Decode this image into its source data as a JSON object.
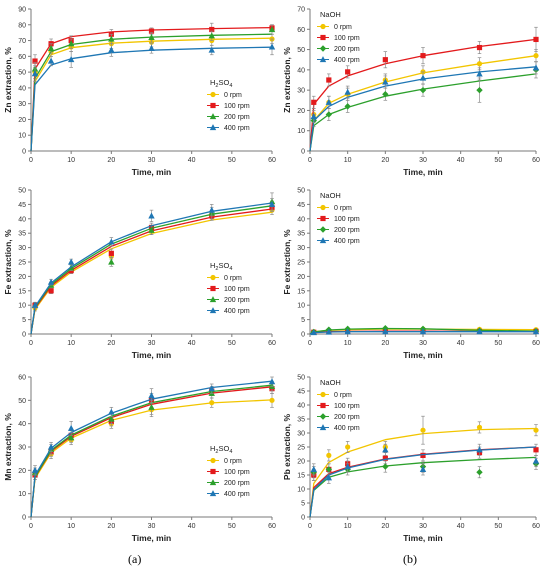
{
  "figure": {
    "label_a": "(a)",
    "label_b": "(b)"
  },
  "chart_data": [
    {
      "id": "zn_h2so4",
      "type": "line",
      "xlabel": "Time, min",
      "ylabel": "Zn extraction, %",
      "xlim": [
        0,
        60
      ],
      "ylim": [
        0,
        90
      ],
      "xticks": [
        0,
        10,
        20,
        30,
        40,
        50,
        60
      ],
      "yticks": [
        0,
        10,
        20,
        30,
        40,
        50,
        60,
        70,
        80,
        90
      ],
      "legend_title": "H2SO4",
      "legend_position": "bottom-right",
      "x": [
        0,
        1,
        5,
        10,
        20,
        30,
        45,
        60
      ],
      "series": [
        {
          "name": "0 rpm",
          "color": "#f2c500",
          "marker": "circle",
          "values": [
            0,
            50,
            63,
            66,
            68,
            69,
            70,
            71
          ],
          "errors": [
            0,
            4,
            3,
            3,
            3,
            3,
            3,
            3
          ],
          "fit": [
            0,
            44,
            61,
            65.5,
            68.3,
            69.6,
            70.8,
            71.5
          ]
        },
        {
          "name": "100 rpm",
          "color": "#e31a1c",
          "marker": "square",
          "values": [
            0,
            57,
            68,
            70,
            74,
            76,
            77,
            78
          ],
          "errors": [
            0,
            4,
            3,
            3,
            3,
            2,
            4,
            2
          ],
          "fit": [
            0,
            52,
            68,
            72.5,
            75.5,
            76.7,
            77.6,
            78.2
          ]
        },
        {
          "name": "200 rpm",
          "color": "#2ca02c",
          "marker": "triangle",
          "values": [
            0,
            52,
            65,
            68,
            71,
            72,
            73,
            77
          ],
          "errors": [
            0,
            4,
            3,
            3,
            3,
            3,
            3,
            3
          ],
          "fit": [
            0,
            46,
            63,
            67.5,
            70.8,
            72.2,
            73.3,
            74
          ]
        },
        {
          "name": "400 rpm",
          "color": "#1f77b4",
          "marker": "triangle",
          "values": [
            0,
            49,
            57,
            58,
            64,
            65,
            64,
            66
          ],
          "errors": [
            0,
            5,
            3,
            5,
            4,
            3,
            3,
            5
          ],
          "fit": [
            0,
            42,
            54.5,
            58.5,
            62.3,
            63.9,
            65.1,
            65.8
          ]
        }
      ]
    },
    {
      "id": "zn_naoh",
      "type": "line",
      "xlabel": "Time, min",
      "ylabel": "Zn extraction, %",
      "xlim": [
        0,
        60
      ],
      "ylim": [
        0,
        70
      ],
      "xticks": [
        0,
        10,
        20,
        30,
        40,
        50,
        60
      ],
      "yticks": [
        0,
        10,
        20,
        30,
        40,
        50,
        60,
        70
      ],
      "legend_title": "NaOH",
      "legend_position": "top-left",
      "x": [
        0,
        1,
        5,
        10,
        20,
        30,
        45,
        60
      ],
      "series": [
        {
          "name": "0 rpm",
          "color": "#f2c500",
          "marker": "circle",
          "values": [
            0,
            18,
            24,
            28,
            35,
            39,
            43,
            47
          ],
          "errors": [
            0,
            3,
            3,
            3,
            3,
            3,
            3,
            3
          ],
          "fit": [
            0,
            15,
            23.5,
            28,
            34,
            38.5,
            43,
            47
          ]
        },
        {
          "name": "100 rpm",
          "color": "#e31a1c",
          "marker": "square",
          "values": [
            0,
            24,
            35,
            39,
            45,
            47,
            51,
            55
          ],
          "errors": [
            0,
            3,
            3,
            3,
            4,
            4,
            3,
            6
          ],
          "fit": [
            0,
            23,
            32,
            37,
            43,
            47,
            51.5,
            55
          ]
        },
        {
          "name": "200 rpm",
          "color": "#2ca02c",
          "marker": "diamond",
          "values": [
            0,
            15,
            18,
            22,
            28,
            30,
            30,
            40
          ],
          "errors": [
            0,
            3,
            3,
            3,
            3,
            3,
            6,
            4
          ],
          "fit": [
            0,
            12.5,
            18,
            21.5,
            27,
            30.5,
            34.5,
            38
          ]
        },
        {
          "name": "400 rpm",
          "color": "#1f77b4",
          "marker": "triangle",
          "values": [
            0,
            17,
            24,
            29,
            34,
            36,
            38,
            41
          ],
          "errors": [
            0,
            3,
            3,
            3,
            3,
            3,
            3,
            3
          ],
          "fit": [
            0,
            15,
            22,
            26.5,
            32,
            35.5,
            39,
            41.5
          ]
        }
      ]
    },
    {
      "id": "fe_h2so4",
      "type": "line",
      "xlabel": "Time, min",
      "ylabel": "Fe extraction, %",
      "xlim": [
        0,
        60
      ],
      "ylim": [
        0,
        50
      ],
      "xticks": [
        0,
        10,
        20,
        30,
        40,
        50,
        60
      ],
      "yticks": [
        0,
        5,
        10,
        15,
        20,
        25,
        30,
        35,
        40,
        45,
        50
      ],
      "legend_title": "H2SO4",
      "legend_position": "bottom-right",
      "x": [
        0,
        1,
        5,
        10,
        20,
        30,
        45,
        60
      ],
      "series": [
        {
          "name": "0 rpm",
          "color": "#f2c500",
          "marker": "circle",
          "values": [
            0,
            9,
            16,
            22,
            27,
            36,
            41,
            43
          ],
          "errors": [
            0,
            1,
            1,
            1,
            1,
            1.5,
            1.5,
            1.5
          ],
          "fit": [
            0,
            8.5,
            16.2,
            21.5,
            29.6,
            34.9,
            39.6,
            42.3
          ]
        },
        {
          "name": "100 rpm",
          "color": "#e31a1c",
          "marker": "square",
          "values": [
            0,
            10,
            15,
            22,
            28,
            37,
            41,
            44
          ],
          "errors": [
            0,
            1,
            1,
            1,
            1.5,
            1.5,
            1.5,
            1.5
          ],
          "fit": [
            0,
            8.9,
            16.7,
            22.1,
            30.4,
            35.8,
            40.6,
            43.4
          ]
        },
        {
          "name": "200 rpm",
          "color": "#2ca02c",
          "marker": "triangle",
          "values": [
            0,
            10,
            17,
            23,
            25,
            36,
            42,
            46
          ],
          "errors": [
            0,
            1,
            1,
            1,
            1.5,
            1.5,
            2,
            3
          ],
          "fit": [
            0,
            9.2,
            17.2,
            22.7,
            31.2,
            36.7,
            41.6,
            44.5
          ]
        },
        {
          "name": "400 rpm",
          "color": "#1f77b4",
          "marker": "triangle",
          "values": [
            0,
            10,
            18,
            25,
            32,
            41,
            43,
            45
          ],
          "errors": [
            0,
            1,
            1,
            1,
            1.5,
            2,
            2,
            2
          ],
          "fit": [
            0,
            9.5,
            17.7,
            23.3,
            32,
            37.6,
            42.6,
            45.5
          ]
        }
      ]
    },
    {
      "id": "fe_naoh",
      "type": "line",
      "xlabel": "Time, min",
      "ylabel": "Fe extraction, %",
      "xlim": [
        0,
        60
      ],
      "ylim": [
        0,
        50
      ],
      "xticks": [
        0,
        10,
        20,
        30,
        40,
        50,
        60
      ],
      "yticks": [
        0,
        5,
        10,
        15,
        20,
        25,
        30,
        35,
        40,
        45,
        50
      ],
      "legend_title": "NaOH",
      "legend_position": "top-left",
      "x": [
        0,
        1,
        5,
        10,
        20,
        30,
        45,
        60
      ],
      "series": [
        {
          "name": "0 rpm",
          "color": "#f2c500",
          "marker": "circle",
          "values": [
            0,
            0.8,
            1.2,
            1.4,
            1.6,
            1.7,
            1.6,
            1.5
          ],
          "errors": [
            0,
            0.3,
            0.3,
            0.3,
            0.3,
            0.3,
            0.3,
            0.3
          ],
          "fit": [
            0,
            0.8,
            1.3,
            1.5,
            1.7,
            1.7,
            1.6,
            1.5
          ]
        },
        {
          "name": "100 rpm",
          "color": "#e31a1c",
          "marker": "square",
          "values": [
            0,
            0.6,
            0.8,
            0.9,
            1.0,
            1.0,
            0.9,
            0.9
          ],
          "errors": [
            0,
            0.2,
            0.2,
            0.2,
            0.2,
            0.2,
            0.2,
            0.2
          ],
          "fit": [
            0,
            0.6,
            0.8,
            0.9,
            1.0,
            1.0,
            0.9,
            0.9
          ]
        },
        {
          "name": "200 rpm",
          "color": "#2ca02c",
          "marker": "diamond",
          "values": [
            0,
            0.7,
            1.5,
            1.8,
            2.0,
            1.8,
            1.2,
            1.0
          ],
          "errors": [
            0,
            0.3,
            0.3,
            0.3,
            0.3,
            0.3,
            0.3,
            0.3
          ],
          "fit": [
            0,
            0.7,
            1.4,
            1.7,
            1.9,
            1.8,
            1.3,
            1.0
          ]
        },
        {
          "name": "400 rpm",
          "color": "#1f77b4",
          "marker": "triangle",
          "values": [
            0,
            0.5,
            0.7,
            0.8,
            0.8,
            0.8,
            0.8,
            0.8
          ],
          "errors": [
            0,
            0.2,
            0.2,
            0.2,
            0.2,
            0.2,
            0.2,
            0.2
          ],
          "fit": [
            0,
            0.5,
            0.7,
            0.8,
            0.8,
            0.8,
            0.8,
            0.8
          ]
        }
      ]
    },
    {
      "id": "mn_h2so4",
      "type": "line",
      "xlabel": "Time, min",
      "ylabel": "Mn extraction, %",
      "xlim": [
        0,
        60
      ],
      "ylim": [
        0,
        60
      ],
      "xticks": [
        0,
        10,
        20,
        30,
        40,
        50,
        60
      ],
      "yticks": [
        0,
        10,
        20,
        30,
        40,
        50,
        60
      ],
      "legend_title": "H2SO4",
      "legend_position": "bottom-right",
      "x": [
        0,
        1,
        5,
        10,
        20,
        30,
        45,
        60
      ],
      "series": [
        {
          "name": "0 rpm",
          "color": "#f2c500",
          "marker": "circle",
          "values": [
            0,
            18,
            27,
            33,
            40,
            46,
            49,
            50
          ],
          "errors": [
            0,
            2,
            2,
            2,
            2,
            3,
            2,
            3
          ],
          "fit": [
            0,
            16.5,
            27.5,
            33.8,
            41.4,
            45.8,
            48.9,
            50.2
          ]
        },
        {
          "name": "100 rpm",
          "color": "#e31a1c",
          "marker": "square",
          "values": [
            0,
            18,
            28,
            35,
            41,
            50,
            54,
            55
          ],
          "errors": [
            0,
            2,
            2,
            2,
            2,
            3,
            2,
            2
          ],
          "fit": [
            0,
            17,
            28.2,
            34.6,
            42.6,
            48.3,
            53.1,
            55.8
          ]
        },
        {
          "name": "200 rpm",
          "color": "#2ca02c",
          "marker": "triangle",
          "values": [
            0,
            19,
            29,
            34,
            42,
            47,
            53,
            56
          ],
          "errors": [
            0,
            2,
            2,
            2,
            2,
            3,
            2,
            2
          ],
          "fit": [
            0,
            17.2,
            28.6,
            35.1,
            43.2,
            49,
            53.8,
            56.5
          ]
        },
        {
          "name": "400 rpm",
          "color": "#1f77b4",
          "marker": "triangle",
          "values": [
            0,
            20,
            30,
            38,
            45,
            52,
            55,
            58
          ],
          "errors": [
            0,
            2,
            2,
            3,
            2,
            3,
            2,
            2
          ],
          "fit": [
            0,
            17.8,
            29.5,
            36.2,
            44.5,
            50.5,
            55.5,
            58.2
          ]
        }
      ]
    },
    {
      "id": "pb_naoh",
      "type": "line",
      "xlabel": "Time, min",
      "ylabel": "Pb extraction, %",
      "xlim": [
        0,
        60
      ],
      "ylim": [
        0,
        50
      ],
      "xticks": [
        0,
        10,
        20,
        30,
        40,
        50,
        60
      ],
      "yticks": [
        0,
        5,
        10,
        15,
        20,
        25,
        30,
        35,
        40,
        45,
        50
      ],
      "legend_title": "NaOH",
      "legend_position": "top-left",
      "x": [
        0,
        1,
        5,
        10,
        20,
        30,
        45,
        60
      ],
      "series": [
        {
          "name": "0 rpm",
          "color": "#f2c500",
          "marker": "circle",
          "values": [
            0,
            15,
            22,
            25,
            25,
            31,
            32,
            31
          ],
          "errors": [
            0,
            2,
            2,
            2,
            2,
            5,
            2,
            2
          ],
          "fit": [
            0,
            12,
            19.5,
            23.2,
            27.6,
            29.8,
            31.2,
            31.6
          ]
        },
        {
          "name": "100 rpm",
          "color": "#e31a1c",
          "marker": "square",
          "values": [
            0,
            15,
            17,
            19,
            21,
            22,
            23,
            24
          ],
          "errors": [
            0,
            2,
            2,
            2,
            2,
            2,
            2,
            2
          ],
          "fit": [
            0,
            10.5,
            15.5,
            17.8,
            20.7,
            22.4,
            24,
            25
          ]
        },
        {
          "name": "200 rpm",
          "color": "#2ca02c",
          "marker": "diamond",
          "values": [
            0,
            16,
            17,
            17,
            18,
            18,
            16,
            19
          ],
          "errors": [
            0,
            2,
            2,
            2,
            2,
            2,
            2,
            2
          ],
          "fit": [
            0,
            9.5,
            14.2,
            16.1,
            18.2,
            19.4,
            20.5,
            21.3
          ]
        },
        {
          "name": "400 rpm",
          "color": "#1f77b4",
          "marker": "triangle",
          "values": [
            0,
            17,
            14,
            18,
            24,
            17,
            24,
            20
          ],
          "errors": [
            0,
            2,
            2,
            2,
            2,
            2,
            2,
            2
          ],
          "fit": [
            0,
            9.8,
            15,
            17.5,
            20.6,
            22.3,
            23.9,
            25
          ]
        }
      ]
    }
  ]
}
